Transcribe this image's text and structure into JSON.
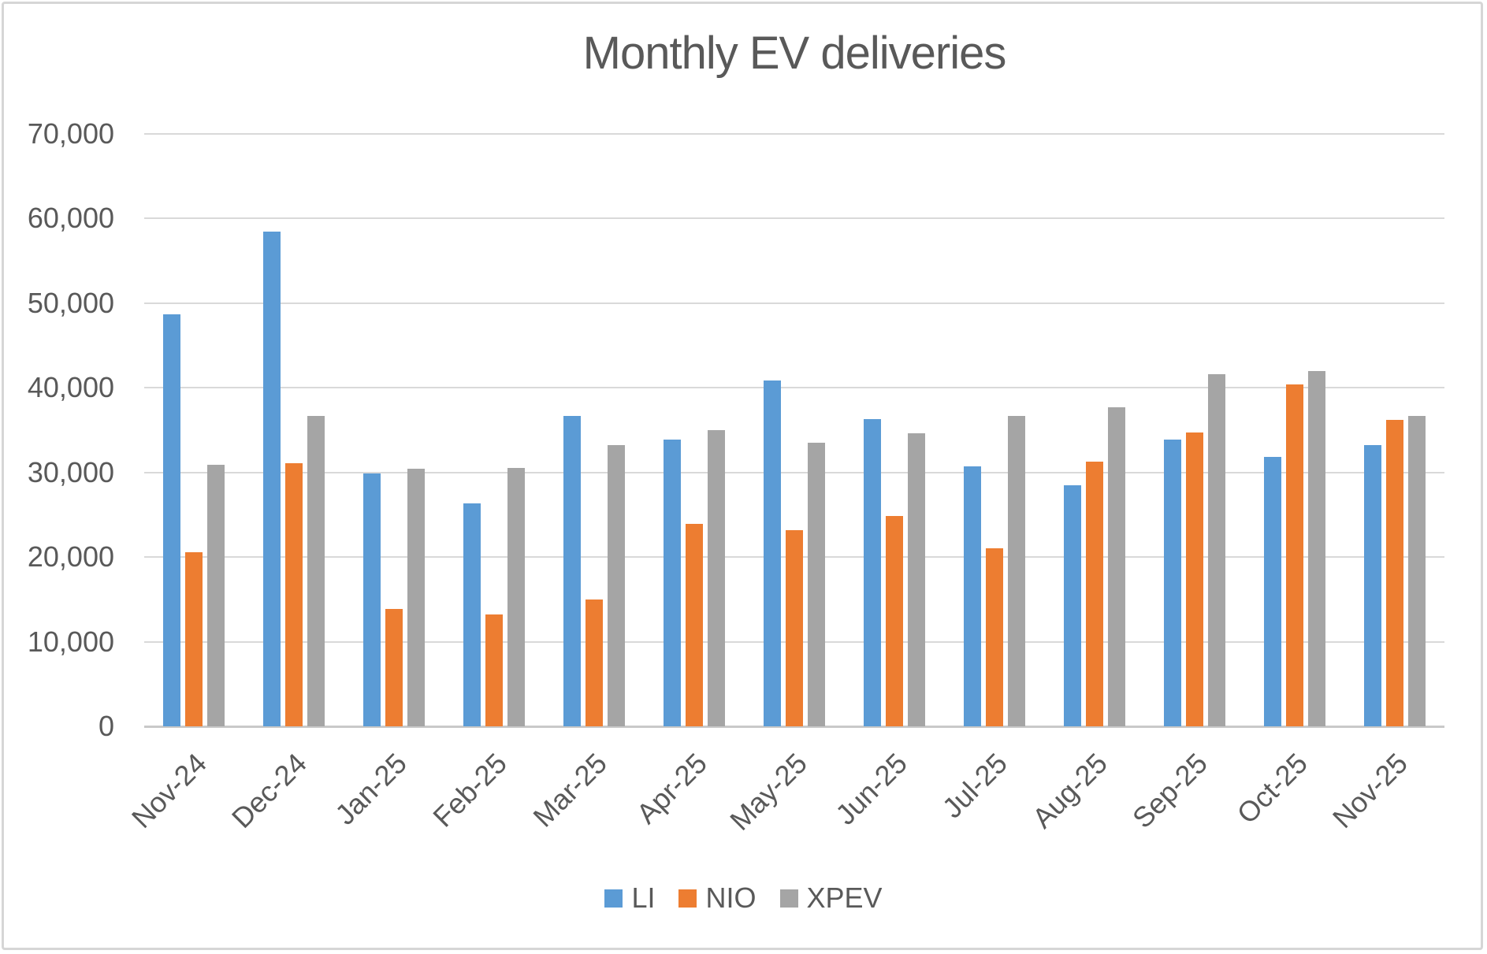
{
  "chart_data": {
    "type": "bar",
    "title": "Monthly EV deliveries",
    "categories": [
      "Nov-24",
      "Dec-24",
      "Jan-25",
      "Feb-25",
      "Mar-25",
      "Apr-25",
      "May-25",
      "Jun-25",
      "Jul-25",
      "Aug-25",
      "Sep-25",
      "Oct-25",
      "Nov-25"
    ],
    "series": [
      {
        "name": "LI",
        "color": "#5B9BD5",
        "values": [
          48700,
          58500,
          29900,
          26300,
          36700,
          33900,
          40900,
          36300,
          30700,
          28500,
          33900,
          31800,
          33200
        ]
      },
      {
        "name": "NIO",
        "color": "#ED7D31",
        "values": [
          20600,
          31100,
          13900,
          13200,
          15000,
          23900,
          23200,
          24900,
          21000,
          31300,
          34700,
          40400,
          36200
        ]
      },
      {
        "name": "XPEV",
        "color": "#A5A5A5",
        "values": [
          30900,
          36700,
          30400,
          30500,
          33200,
          35000,
          33500,
          34600,
          36700,
          37700,
          41600,
          42000,
          36700
        ]
      }
    ],
    "xlabel": "",
    "ylabel": "",
    "ylim": [
      0,
      70000
    ],
    "ytick_interval": 10000,
    "ytick_labels": [
      "0",
      "10,000",
      "20,000",
      "30,000",
      "40,000",
      "50,000",
      "60,000",
      "70,000"
    ],
    "grid": "horizontal",
    "legend_position": "bottom"
  },
  "style": {
    "text_color": "#595959",
    "gridline_color": "#D9D9D9",
    "axis_line_color": "#C9C9C9",
    "frame_border_color": "#D6D6D6",
    "background": "#FFFFFF"
  }
}
